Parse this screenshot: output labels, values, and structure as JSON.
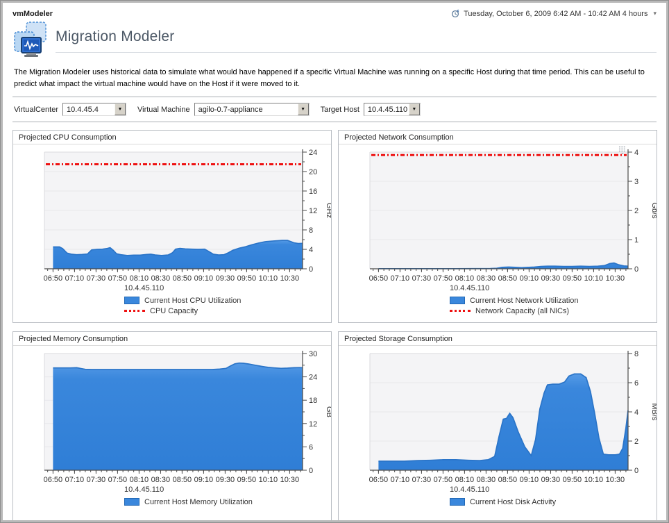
{
  "window": {
    "app_title": "vmModeler",
    "time_range_label": "Tuesday, October 6, 2009 6:42 AM - 10:42 AM 4 hours"
  },
  "header": {
    "title": "Migration Modeler",
    "description": "The Migration Modeler uses historical data to simulate what would have happened if a specific Virtual Machine was running on a specific Host during that time period. This can be useful to predict what impact the virtual machine would have on the Host if it were moved to it."
  },
  "filters": {
    "virtualcenter": {
      "label": "VirtualCenter",
      "value": "10.4.45.4"
    },
    "virtual_machine": {
      "label": "Virtual Machine",
      "value": "agilo-0.7-appliance"
    },
    "target_host": {
      "label": "Target Host",
      "value": "10.4.45.110"
    }
  },
  "colors": {
    "series_fill": "#3a87dc",
    "series_stroke": "#2a74c8",
    "capacity_red": "#ee1111",
    "plot_bg": "#f4f4f6",
    "gridline": "#e7e7eb",
    "axis": "#4a4a4a"
  },
  "chart_data": [
    {
      "type": "area",
      "title": "Projected CPU Consumption",
      "ylabel": "GHz",
      "ylim": [
        0,
        24
      ],
      "ytick_step": 4,
      "yminor_step": 2,
      "x_range_min": [
        0,
        240
      ],
      "xtick_minutes": [
        8,
        28,
        48,
        68,
        88,
        108,
        128,
        148,
        168,
        188,
        208,
        228
      ],
      "xtick_labels": [
        "06:50",
        "07:10",
        "07:30",
        "07:50",
        "08:10",
        "08:30",
        "08:50",
        "09:10",
        "09:30",
        "09:50",
        "10:10",
        "10:30"
      ],
      "capacity": 21.5,
      "series_points": [
        [
          8,
          4.5
        ],
        [
          14,
          4.5
        ],
        [
          17,
          4.15
        ],
        [
          21,
          3.25
        ],
        [
          25,
          3.0
        ],
        [
          30,
          2.9
        ],
        [
          35,
          2.95
        ],
        [
          40,
          3.05
        ],
        [
          44,
          3.9
        ],
        [
          49,
          4.0
        ],
        [
          54,
          4.05
        ],
        [
          58,
          4.15
        ],
        [
          61,
          4.35
        ],
        [
          64,
          3.8
        ],
        [
          67,
          3.1
        ],
        [
          71,
          2.9
        ],
        [
          77,
          2.75
        ],
        [
          83,
          2.8
        ],
        [
          89,
          2.8
        ],
        [
          95,
          2.95
        ],
        [
          99,
          3.0
        ],
        [
          103,
          2.85
        ],
        [
          109,
          2.75
        ],
        [
          115,
          2.85
        ],
        [
          119,
          3.3
        ],
        [
          122,
          4.05
        ],
        [
          126,
          4.2
        ],
        [
          131,
          4.1
        ],
        [
          137,
          4.05
        ],
        [
          143,
          4.0
        ],
        [
          149,
          4.05
        ],
        [
          153,
          3.55
        ],
        [
          157,
          3.0
        ],
        [
          162,
          2.85
        ],
        [
          167,
          2.9
        ],
        [
          171,
          3.3
        ],
        [
          175,
          3.8
        ],
        [
          181,
          4.25
        ],
        [
          187,
          4.55
        ],
        [
          193,
          4.95
        ],
        [
          199,
          5.3
        ],
        [
          206,
          5.6
        ],
        [
          214,
          5.75
        ],
        [
          221,
          5.85
        ],
        [
          226,
          5.85
        ],
        [
          232,
          5.35
        ],
        [
          236,
          5.2
        ],
        [
          240,
          5.25
        ]
      ],
      "legend": {
        "host": "10.4.45.110",
        "series_label": "Current Host CPU Utilization",
        "capacity_label": "CPU Capacity"
      }
    },
    {
      "type": "area",
      "title": "Projected Network Consumption",
      "ylabel": "Gb/s",
      "ylim": [
        0,
        4
      ],
      "ytick_step": 1,
      "yminor_step": 0.5,
      "x_range_min": [
        0,
        240
      ],
      "xtick_minutes": [
        8,
        28,
        48,
        68,
        88,
        108,
        128,
        148,
        168,
        188,
        208,
        228
      ],
      "xtick_labels": [
        "06:50",
        "07:10",
        "07:30",
        "07:50",
        "08:10",
        "08:30",
        "08:50",
        "09:10",
        "09:30",
        "09:50",
        "10:10",
        "10:30"
      ],
      "capacity": 3.9,
      "series_points": [
        [
          8,
          0.005
        ],
        [
          40,
          0.005
        ],
        [
          80,
          0.005
        ],
        [
          112,
          0.01
        ],
        [
          118,
          0.02
        ],
        [
          123,
          0.05
        ],
        [
          129,
          0.06
        ],
        [
          135,
          0.05
        ],
        [
          141,
          0.04
        ],
        [
          147,
          0.05
        ],
        [
          153,
          0.06
        ],
        [
          159,
          0.08
        ],
        [
          165,
          0.09
        ],
        [
          172,
          0.09
        ],
        [
          180,
          0.08
        ],
        [
          188,
          0.08
        ],
        [
          196,
          0.09
        ],
        [
          204,
          0.08
        ],
        [
          212,
          0.09
        ],
        [
          218,
          0.11
        ],
        [
          223,
          0.18
        ],
        [
          227,
          0.2
        ],
        [
          231,
          0.14
        ],
        [
          236,
          0.1
        ],
        [
          240,
          0.09
        ]
      ],
      "legend": {
        "host": "10.4.45.110",
        "series_label": "Current Host Network Utilization",
        "capacity_label": "Network Capacity (all NICs)"
      },
      "has_menu_icon": true
    },
    {
      "type": "area",
      "title": "Projected Memory Consumption",
      "ylabel": "GB",
      "ylim": [
        0,
        30
      ],
      "ytick_step": 6,
      "yminor_step": 3,
      "x_range_min": [
        0,
        240
      ],
      "xtick_minutes": [
        8,
        28,
        48,
        68,
        88,
        108,
        128,
        148,
        168,
        188,
        208,
        228
      ],
      "xtick_labels": [
        "06:50",
        "07:10",
        "07:30",
        "07:50",
        "08:10",
        "08:30",
        "08:50",
        "09:10",
        "09:30",
        "09:50",
        "10:10",
        "10:30"
      ],
      "capacity": null,
      "series_points": [
        [
          8,
          26.3
        ],
        [
          16,
          26.3
        ],
        [
          24,
          26.3
        ],
        [
          30,
          26.35
        ],
        [
          34,
          26.15
        ],
        [
          38,
          25.95
        ],
        [
          44,
          25.9
        ],
        [
          60,
          25.9
        ],
        [
          80,
          25.9
        ],
        [
          100,
          25.9
        ],
        [
          120,
          25.9
        ],
        [
          140,
          25.9
        ],
        [
          156,
          25.9
        ],
        [
          163,
          26.0
        ],
        [
          169,
          26.2
        ],
        [
          173,
          26.8
        ],
        [
          177,
          27.35
        ],
        [
          181,
          27.55
        ],
        [
          185,
          27.5
        ],
        [
          190,
          27.3
        ],
        [
          196,
          27.0
        ],
        [
          202,
          26.7
        ],
        [
          208,
          26.45
        ],
        [
          214,
          26.3
        ],
        [
          220,
          26.2
        ],
        [
          226,
          26.25
        ],
        [
          232,
          26.35
        ],
        [
          237,
          26.4
        ],
        [
          240,
          26.35
        ]
      ],
      "legend": {
        "host": "10.4.45.110",
        "series_label": "Current Host Memory Utilization",
        "capacity_label": null
      }
    },
    {
      "type": "area",
      "title": "Projected Storage Consumption",
      "ylabel": "MB/s",
      "ylim": [
        0,
        8
      ],
      "ytick_step": 2,
      "yminor_step": 1,
      "x_range_min": [
        0,
        240
      ],
      "xtick_minutes": [
        8,
        28,
        48,
        68,
        88,
        108,
        128,
        148,
        168,
        188,
        208,
        228
      ],
      "xtick_labels": [
        "06:50",
        "07:10",
        "07:30",
        "07:50",
        "08:10",
        "08:30",
        "08:50",
        "09:10",
        "09:30",
        "09:50",
        "10:10",
        "10:30"
      ],
      "capacity": null,
      "series_points": [
        [
          8,
          0.62
        ],
        [
          20,
          0.62
        ],
        [
          32,
          0.62
        ],
        [
          44,
          0.66
        ],
        [
          56,
          0.68
        ],
        [
          68,
          0.72
        ],
        [
          80,
          0.72
        ],
        [
          92,
          0.68
        ],
        [
          102,
          0.66
        ],
        [
          110,
          0.72
        ],
        [
          116,
          0.95
        ],
        [
          120,
          2.3
        ],
        [
          124,
          3.5
        ],
        [
          127,
          3.55
        ],
        [
          130,
          3.9
        ],
        [
          133,
          3.6
        ],
        [
          138,
          2.6
        ],
        [
          144,
          1.6
        ],
        [
          150,
          1.0
        ],
        [
          154,
          2.1
        ],
        [
          158,
          4.2
        ],
        [
          162,
          5.3
        ],
        [
          165,
          5.85
        ],
        [
          170,
          5.9
        ],
        [
          176,
          5.9
        ],
        [
          181,
          6.05
        ],
        [
          185,
          6.45
        ],
        [
          190,
          6.6
        ],
        [
          196,
          6.6
        ],
        [
          201,
          6.35
        ],
        [
          205,
          5.4
        ],
        [
          209,
          3.9
        ],
        [
          213,
          2.2
        ],
        [
          217,
          1.1
        ],
        [
          222,
          1.05
        ],
        [
          228,
          1.05
        ],
        [
          232,
          1.1
        ],
        [
          235,
          1.5
        ],
        [
          238,
          2.9
        ],
        [
          240,
          4.1
        ]
      ],
      "legend": {
        "host": "10.4.45.110",
        "series_label": "Current Host Disk Activity",
        "capacity_label": null
      }
    }
  ]
}
